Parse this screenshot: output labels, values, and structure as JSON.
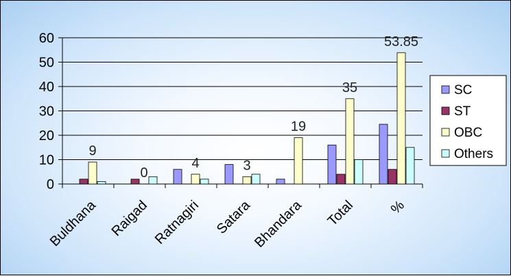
{
  "chart_data": {
    "type": "bar",
    "categories": [
      "Buldhana",
      "Raigad",
      "Ratnagiri",
      "Satara",
      "Bhandara",
      "Total",
      "%"
    ],
    "series": [
      {
        "name": "SC",
        "color": "#9999ff",
        "values": [
          0,
          0,
          6,
          8,
          2,
          16,
          24.5
        ]
      },
      {
        "name": "ST",
        "color": "#993366",
        "values": [
          2,
          2,
          0,
          0,
          0,
          4,
          6
        ]
      },
      {
        "name": "OBC",
        "color": "#ffffcc",
        "values": [
          9,
          0,
          4,
          3,
          19,
          35,
          53.85
        ]
      },
      {
        "name": "Others",
        "color": "#ccffff",
        "values": [
          1,
          3,
          2,
          4,
          0,
          10,
          15
        ]
      }
    ],
    "data_labels": [
      "9",
      "0",
      "4",
      "3",
      "19",
      "35",
      "53.85"
    ],
    "data_label_series": "OBC",
    "y_ticks": [
      "0",
      "10",
      "20",
      "30",
      "40",
      "50",
      "60"
    ],
    "ylim": [
      0,
      60
    ],
    "grid": true,
    "legend_position": "right",
    "title": "",
    "xlabel": "",
    "ylabel": ""
  }
}
